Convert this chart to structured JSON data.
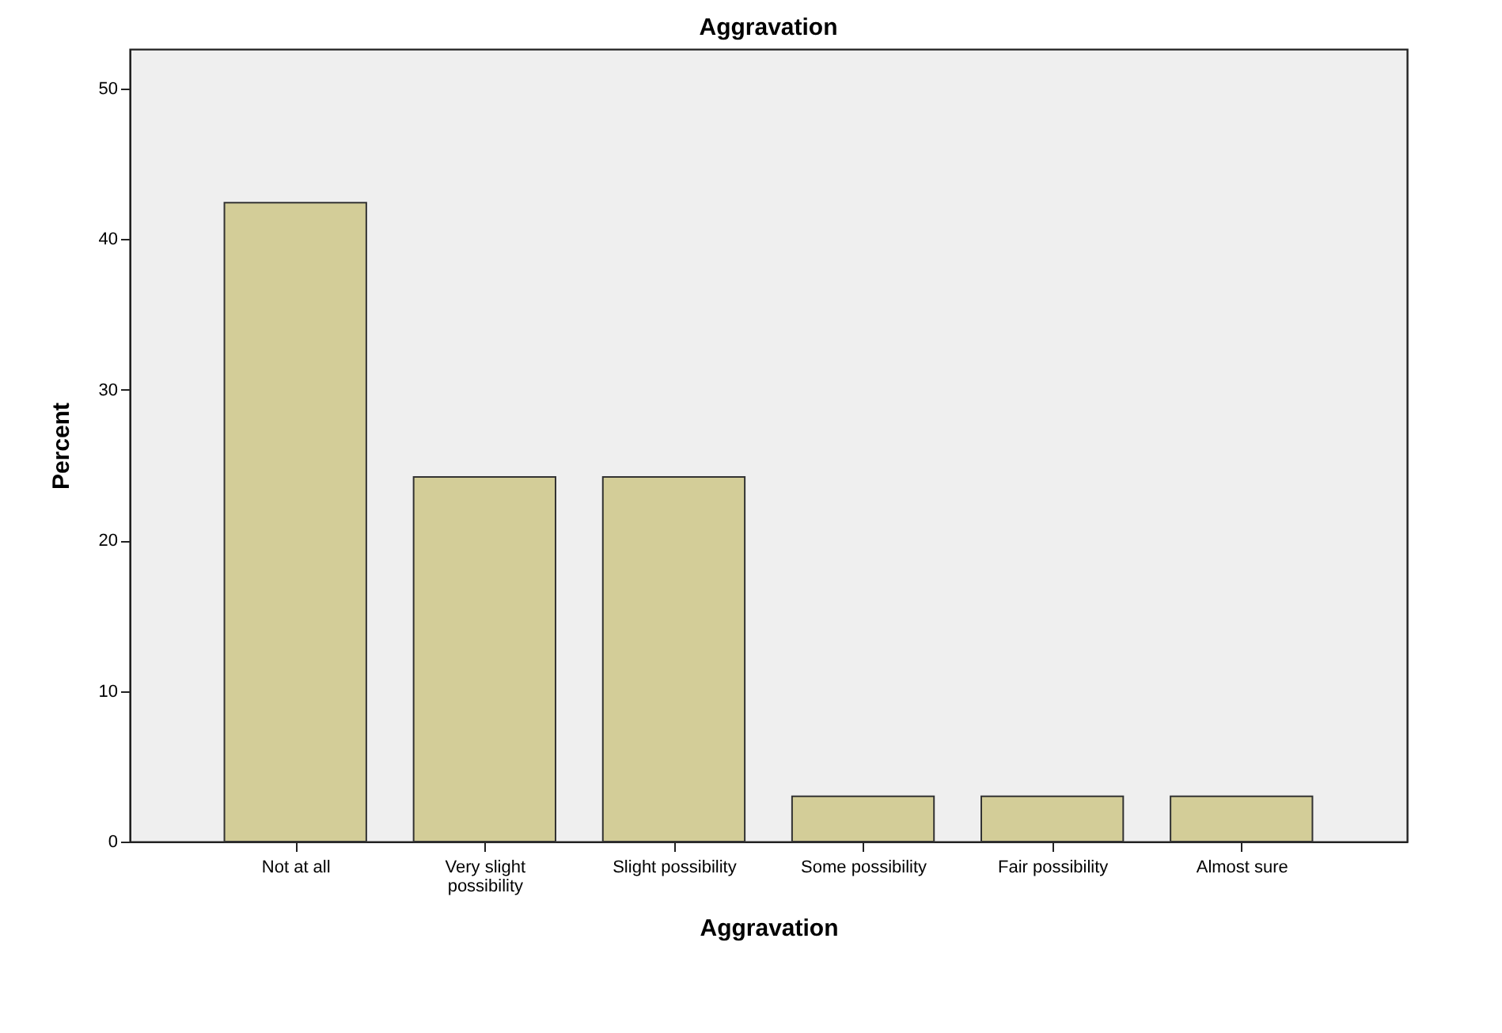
{
  "chart_data": {
    "type": "bar",
    "title": "Aggravation",
    "xlabel": "Aggravation",
    "ylabel": "Percent",
    "categories": [
      "Not at all",
      "Very slight possibility",
      "Slight possibility",
      "Some possibility",
      "Fair possibility",
      "Almost sure"
    ],
    "values": [
      42.4,
      24.2,
      24.2,
      3.0,
      3.0,
      3.0
    ],
    "color": "#d3cd98",
    "ylim": [
      0,
      52.6
    ],
    "yticks": [
      0,
      10,
      20,
      30,
      40,
      50
    ],
    "grid": false
  }
}
